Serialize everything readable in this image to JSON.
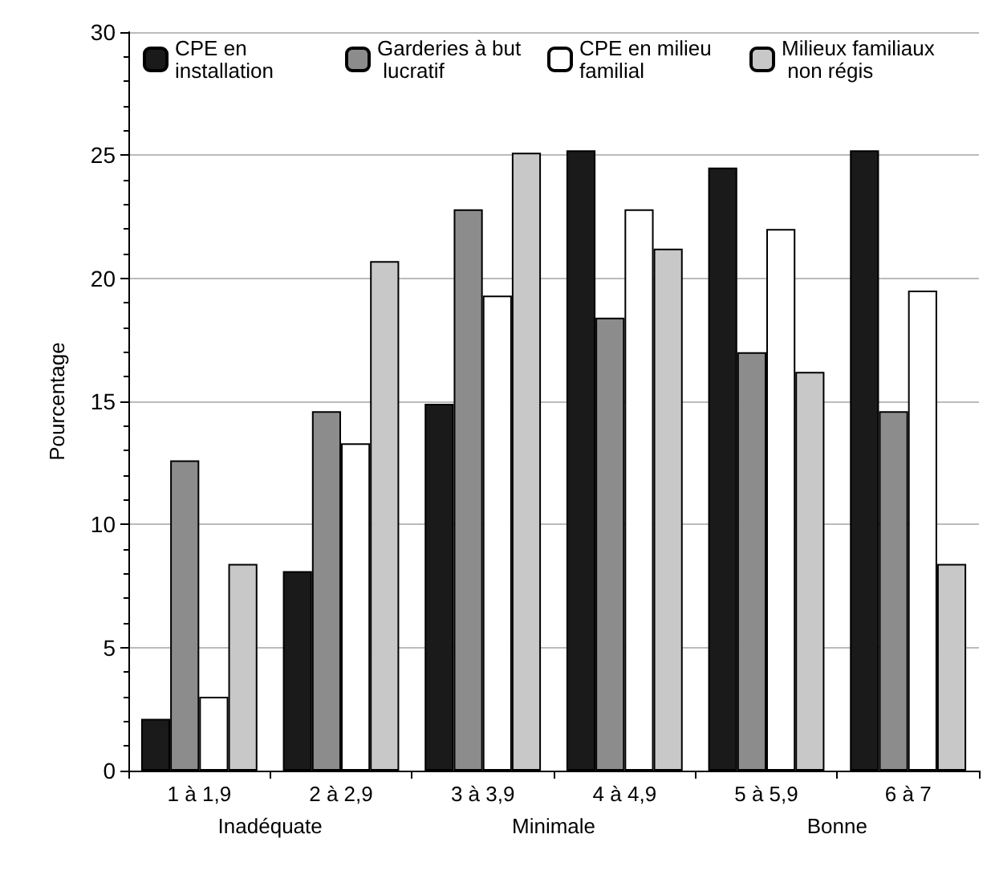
{
  "chart_data": {
    "type": "bar",
    "ylabel": "Pourcentage",
    "categories": [
      "1 à 1,9",
      "2 à 2,9",
      "3 à 3,9",
      "4 à 4,9",
      "5 à 5,9",
      "6 à 7"
    ],
    "series": [
      {
        "name": "CPE en installation",
        "color": "#1a1a1a",
        "values": [
          2.1,
          8.1,
          14.9,
          25.2,
          24.5,
          25.2
        ]
      },
      {
        "name": "Garderies à but lucratif",
        "color": "#8c8c8c",
        "values": [
          12.6,
          14.6,
          22.8,
          18.4,
          17.0,
          14.6
        ]
      },
      {
        "name": "CPE en milieu familial",
        "color": "#ffffff",
        "values": [
          3.0,
          13.3,
          19.3,
          22.8,
          22.0,
          19.5
        ]
      },
      {
        "name": "Milieux familiaux non régis",
        "color": "#c8c8c8",
        "values": [
          8.4,
          20.7,
          25.1,
          21.2,
          16.2,
          8.4
        ]
      }
    ],
    "annotations": [
      "Inadéquate",
      "Minimale",
      "Bonne"
    ],
    "ylim": [
      0,
      30
    ],
    "yticks": [
      0,
      5,
      10,
      15,
      20,
      25,
      30
    ],
    "grid": "y",
    "legend": "top left"
  }
}
